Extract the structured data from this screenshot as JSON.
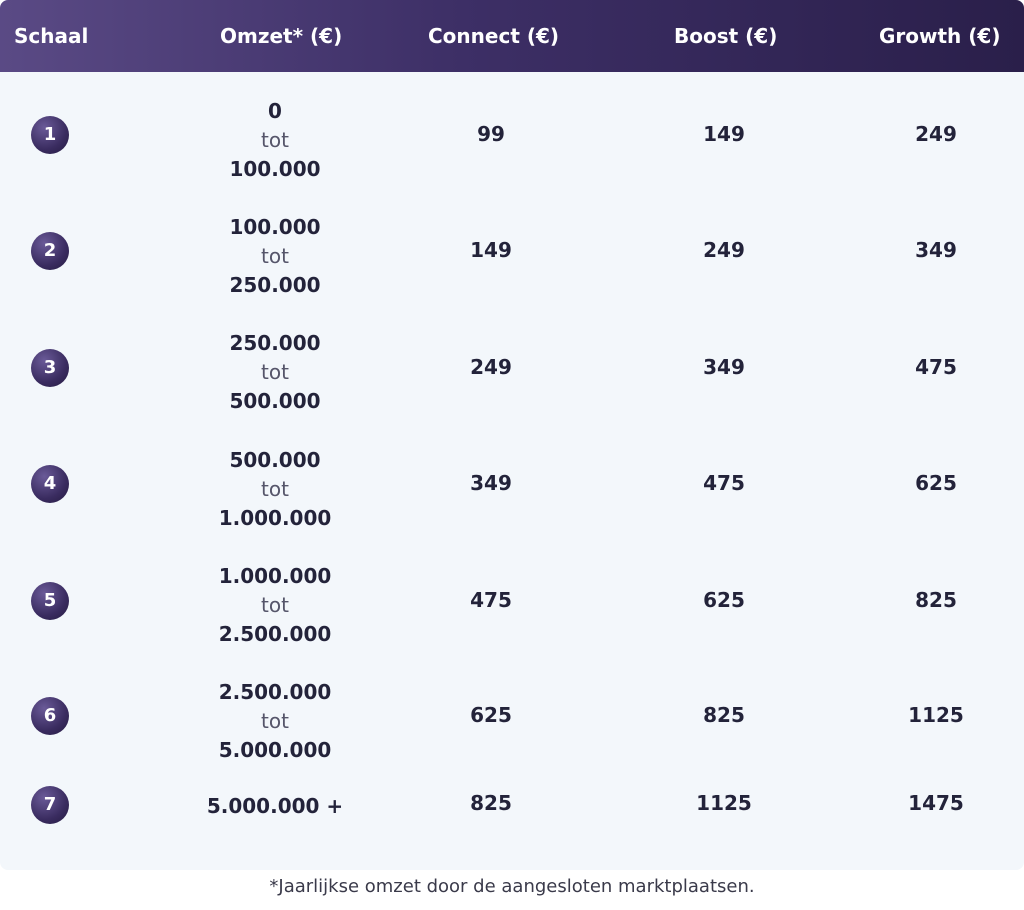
{
  "header": {
    "schaal": "Schaal",
    "omzet": "Omzet* (€)",
    "connect": "Connect (€)",
    "boost": "Boost (€)",
    "growth": "Growth (€)"
  },
  "rows": [
    {
      "scale": "1",
      "from": "0",
      "sep": "tot",
      "to": "100.000",
      "connect": "99",
      "boost": "149",
      "growth": "249"
    },
    {
      "scale": "2",
      "from": "100.000",
      "sep": "tot",
      "to": "250.000",
      "connect": "149",
      "boost": "249",
      "growth": "349"
    },
    {
      "scale": "3",
      "from": "250.000",
      "sep": "tot",
      "to": "500.000",
      "connect": "249",
      "boost": "349",
      "growth": "475"
    },
    {
      "scale": "4",
      "from": "500.000",
      "sep": "tot",
      "to": "1.000.000",
      "connect": "349",
      "boost": "475",
      "growth": "625"
    },
    {
      "scale": "5",
      "from": "1.000.000",
      "sep": "tot",
      "to": "2.500.000",
      "connect": "475",
      "boost": "625",
      "growth": "825"
    },
    {
      "scale": "6",
      "from": "2.500.000",
      "sep": "tot",
      "to": "5.000.000",
      "connect": "625",
      "boost": "825",
      "growth": "1125"
    },
    {
      "scale": "7",
      "range": "5.000.000 +",
      "connect": "825",
      "boost": "1125",
      "growth": "1475"
    }
  ],
  "footnote": "*Jaarlijkse omzet door de aangesloten marktplaatsen.",
  "colors": {
    "header_start": "#5a4a85",
    "header_end": "#2a1f4a",
    "card_bg": "#f3f7fb",
    "text": "#23233a"
  }
}
